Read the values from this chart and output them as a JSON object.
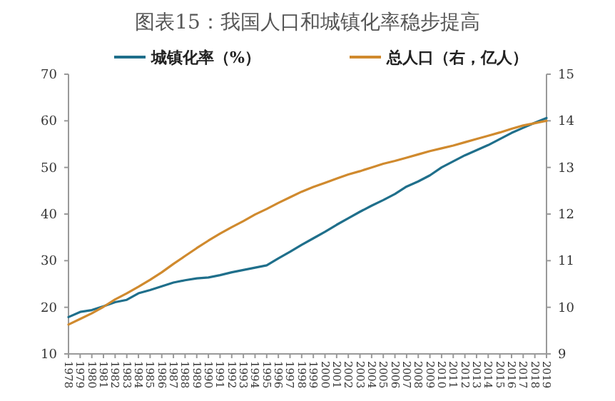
{
  "chart_data": {
    "type": "line",
    "title": "图表15：我国人口和城镇化率稳步提高",
    "categories": [
      "1978",
      "1979",
      "1980",
      "1981",
      "1982",
      "1983",
      "1984",
      "1985",
      "1986",
      "1987",
      "1988",
      "1989",
      "1990",
      "1991",
      "1992",
      "1993",
      "1994",
      "1995",
      "1996",
      "1997",
      "1998",
      "1999",
      "2000",
      "2001",
      "2002",
      "2003",
      "2004",
      "2005",
      "2006",
      "2007",
      "2008",
      "2009",
      "2010",
      "2011",
      "2012",
      "2013",
      "2014",
      "2015",
      "2016",
      "2017",
      "2018",
      "2019"
    ],
    "series": [
      {
        "name": "城镇化率（%）",
        "color": "#1f6f8b",
        "values": [
          17.9,
          19.0,
          19.4,
          20.2,
          21.1,
          21.6,
          23.0,
          23.7,
          24.5,
          25.3,
          25.8,
          26.2,
          26.4,
          26.9,
          27.5,
          28.0,
          28.5,
          29.0,
          30.5,
          31.9,
          33.4,
          34.8,
          36.2,
          37.7,
          39.1,
          40.5,
          41.8,
          43.0,
          44.3,
          45.9,
          47.0,
          48.3,
          50.0,
          51.3,
          52.6,
          53.7,
          54.8,
          56.1,
          57.4,
          58.5,
          59.6,
          60.6
        ]
      },
      {
        "name": "总人口（右，亿人）",
        "color": "#d08a2e",
        "axis": "y2",
        "values": [
          9.63,
          9.75,
          9.87,
          10.01,
          10.17,
          10.3,
          10.44,
          10.59,
          10.75,
          10.93,
          11.1,
          11.27,
          11.43,
          11.58,
          11.72,
          11.85,
          11.99,
          12.11,
          12.24,
          12.36,
          12.48,
          12.58,
          12.67,
          12.76,
          12.85,
          12.92,
          13.0,
          13.08,
          13.14,
          13.21,
          13.28,
          13.35,
          13.41,
          13.47,
          13.54,
          13.61,
          13.68,
          13.75,
          13.83,
          13.9,
          13.95,
          14.0
        ]
      }
    ],
    "ylim": [
      10,
      70
    ],
    "yticks": [
      10,
      20,
      30,
      40,
      50,
      60,
      70
    ],
    "y2lim": [
      9,
      15
    ],
    "y2ticks": [
      9,
      10,
      11,
      12,
      13,
      14,
      15
    ],
    "legend": "top",
    "grid": false,
    "marker": "none",
    "line_style": "solid"
  }
}
